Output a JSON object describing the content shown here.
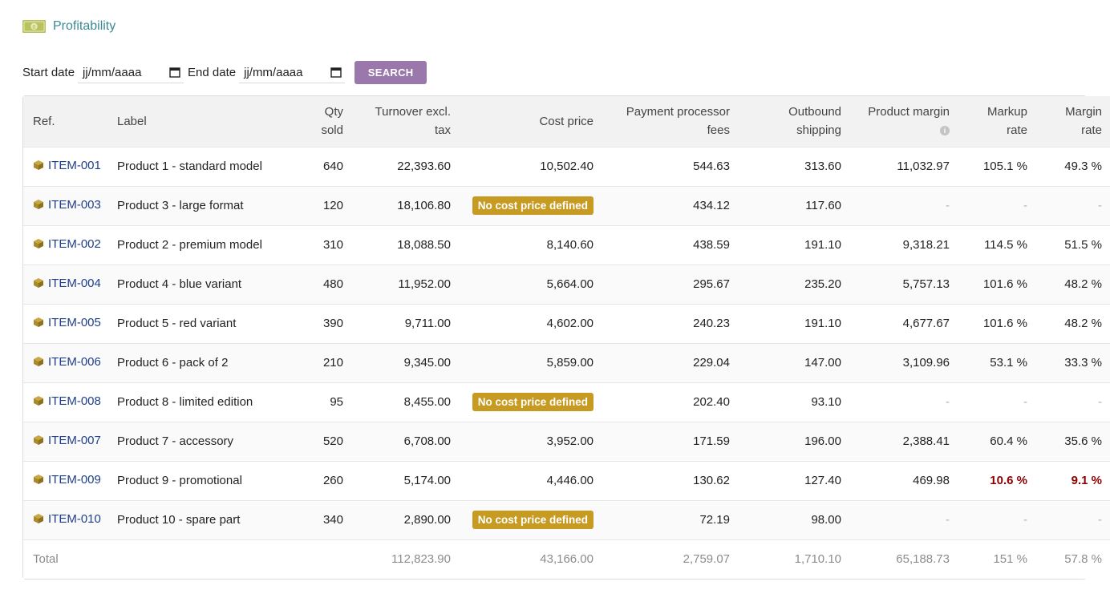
{
  "header": {
    "title": "Profitability",
    "icon": "money-icon"
  },
  "filters": {
    "start_label": "Start date",
    "start_value": "jj/mm/aaaa",
    "end_label": "End date",
    "end_value": "jj/mm/aaaa",
    "search_label": "SEARCH"
  },
  "columns": {
    "ref": "Ref.",
    "label": "Label",
    "qty_1": "Qty",
    "qty_2": "sold",
    "turnover_1": "Turnover excl.",
    "turnover_2": "tax",
    "cost": "Cost price",
    "fees_1": "Payment processor",
    "fees_2": "fees",
    "shipping_1": "Outbound",
    "shipping_2": "shipping",
    "margin": "Product margin",
    "markup_1": "Markup",
    "markup_2": "rate",
    "margin_rate_1": "Margin",
    "margin_rate_2": "rate"
  },
  "no_cost_label": "No cost price defined",
  "rows": [
    {
      "ref": "ITEM-001",
      "label": "Product 1 - standard model",
      "qty": "640",
      "turnover": "22,393.60",
      "cost": "10,502.40",
      "fees": "544.63",
      "shipping": "313.60",
      "margin": "11,032.97",
      "markup": "105.1 %",
      "margin_rate": "49.3 %"
    },
    {
      "ref": "ITEM-003",
      "label": "Product 3 - large format",
      "qty": "120",
      "turnover": "18,106.80",
      "cost": null,
      "fees": "434.12",
      "shipping": "117.60",
      "margin": "-",
      "markup": "-",
      "margin_rate": "-"
    },
    {
      "ref": "ITEM-002",
      "label": "Product 2 - premium model",
      "qty": "310",
      "turnover": "18,088.50",
      "cost": "8,140.60",
      "fees": "438.59",
      "shipping": "191.10",
      "margin": "9,318.21",
      "markup": "114.5 %",
      "margin_rate": "51.5 %"
    },
    {
      "ref": "ITEM-004",
      "label": "Product 4 - blue variant",
      "qty": "480",
      "turnover": "11,952.00",
      "cost": "5,664.00",
      "fees": "295.67",
      "shipping": "235.20",
      "margin": "5,757.13",
      "markup": "101.6 %",
      "margin_rate": "48.2 %"
    },
    {
      "ref": "ITEM-005",
      "label": "Product 5 - red variant",
      "qty": "390",
      "turnover": "9,711.00",
      "cost": "4,602.00",
      "fees": "240.23",
      "shipping": "191.10",
      "margin": "4,677.67",
      "markup": "101.6 %",
      "margin_rate": "48.2 %"
    },
    {
      "ref": "ITEM-006",
      "label": "Product 6 - pack of 2",
      "qty": "210",
      "turnover": "9,345.00",
      "cost": "5,859.00",
      "fees": "229.04",
      "shipping": "147.00",
      "margin": "3,109.96",
      "markup": "53.1 %",
      "margin_rate": "33.3 %"
    },
    {
      "ref": "ITEM-008",
      "label": "Product 8 - limited edition",
      "qty": "95",
      "turnover": "8,455.00",
      "cost": null,
      "fees": "202.40",
      "shipping": "93.10",
      "margin": "-",
      "markup": "-",
      "margin_rate": "-"
    },
    {
      "ref": "ITEM-007",
      "label": "Product 7 - accessory",
      "qty": "520",
      "turnover": "6,708.00",
      "cost": "3,952.00",
      "fees": "171.59",
      "shipping": "196.00",
      "margin": "2,388.41",
      "markup": "60.4 %",
      "margin_rate": "35.6 %"
    },
    {
      "ref": "ITEM-009",
      "label": "Product 9 - promotional",
      "qty": "260",
      "turnover": "5,174.00",
      "cost": "4,446.00",
      "fees": "130.62",
      "shipping": "127.40",
      "margin": "469.98",
      "markup": "10.6 %",
      "margin_rate": "9.1 %",
      "low_rate": true
    },
    {
      "ref": "ITEM-010",
      "label": "Product 10 - spare part",
      "qty": "340",
      "turnover": "2,890.00",
      "cost": null,
      "fees": "72.19",
      "shipping": "98.00",
      "margin": "-",
      "markup": "-",
      "margin_rate": "-"
    }
  ],
  "total": {
    "label": "Total",
    "turnover": "112,823.90",
    "cost": "43,166.00",
    "fees": "2,759.07",
    "shipping": "1,710.10",
    "margin": "65,188.73",
    "markup": "151 %",
    "margin_rate": "57.8 %"
  },
  "colors": {
    "title": "#3a8a95",
    "search_button": "#9a78ac",
    "badge": "#c79a22",
    "link": "#1f3f8a",
    "low_rate": "#8b0000"
  }
}
